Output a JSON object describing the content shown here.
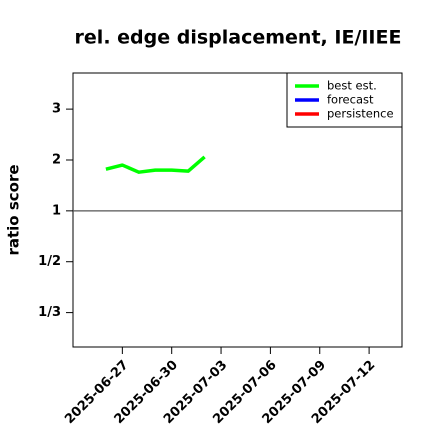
{
  "chart_data": {
    "type": "line",
    "title": "rel. edge displacement, IE/IIEE",
    "y_label": "ratio score",
    "x": [
      "2025-06-26",
      "2025-06-27",
      "2025-06-28",
      "2025-06-29",
      "2025-06-30",
      "2025-07-01",
      "2025-07-02"
    ],
    "series": [
      {
        "name": "best est.",
        "color": "#00ff00",
        "values": [
          1.82,
          1.9,
          1.76,
          1.8,
          1.8,
          1.78,
          2.06
        ]
      },
      {
        "name": "forecast",
        "color": "#0000ff",
        "values": [
          null,
          null,
          null,
          null,
          null,
          null,
          null
        ]
      },
      {
        "name": "persistence",
        "color": "#ff0000",
        "values": [
          null,
          null,
          null,
          null,
          null,
          null,
          null
        ]
      }
    ],
    "ylim": [
      0.272,
      3.71
    ],
    "yticks": [
      {
        "value": 0.3333,
        "label": "1/3"
      },
      {
        "value": 0.5,
        "label": "1/2"
      },
      1,
      2,
      3
    ],
    "reference_line": 1,
    "xlim": [
      "2025-06-24",
      "2025-07-14"
    ],
    "xticks": [
      "2025-06-27",
      "2025-06-30",
      "2025-07-03",
      "2025-07-06",
      "2025-07-09",
      "2025-07-12"
    ],
    "xtick_colors": [
      "#000000",
      "#000000",
      "#228b22",
      "#000000",
      "#000000",
      "#000000"
    ],
    "legend": "top-right"
  }
}
